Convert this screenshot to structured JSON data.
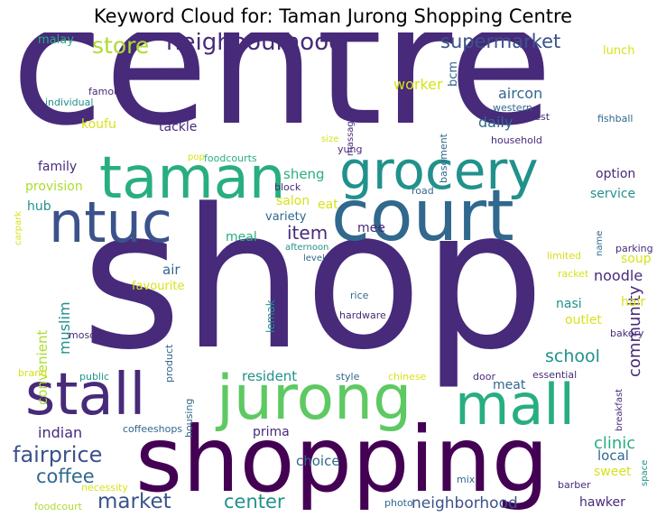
{
  "title": "Keyword Cloud for: Taman Jurong Shopping Centre",
  "palette": {
    "dark_purple": "#472a7a",
    "deep_purple": "#440154",
    "indigo": "#3b528b",
    "slate": "#31688e",
    "teal": "#21918c",
    "sea_green": "#28ae80",
    "green": "#5ec962",
    "light_green": "#addc30",
    "yellow": "#d8e219",
    "bright_yellow": "#fde725"
  },
  "words": [
    {
      "text": "centre",
      "weight": 1.0
    },
    {
      "text": "shop",
      "weight": 0.98
    },
    {
      "text": "shopping",
      "weight": 0.62
    },
    {
      "text": "court",
      "weight": 0.52
    },
    {
      "text": "jurong",
      "weight": 0.48
    },
    {
      "text": "taman",
      "weight": 0.46
    },
    {
      "text": "grocery",
      "weight": 0.43
    },
    {
      "text": "stall",
      "weight": 0.43
    },
    {
      "text": "mall",
      "weight": 0.42
    },
    {
      "text": "ntuc",
      "weight": 0.4
    },
    {
      "text": "neighbourhood",
      "weight": 0.2
    },
    {
      "text": "supermarket",
      "weight": 0.15
    },
    {
      "text": "store",
      "weight": 0.2
    },
    {
      "text": "fairprice",
      "weight": 0.17
    },
    {
      "text": "coffee",
      "weight": 0.15
    },
    {
      "text": "market",
      "weight": 0.15
    },
    {
      "text": "center",
      "weight": 0.15
    },
    {
      "text": "neighborhood",
      "weight": 0.12
    },
    {
      "text": "item",
      "weight": 0.14
    },
    {
      "text": "school",
      "weight": 0.14
    },
    {
      "text": "community",
      "weight": 0.14
    },
    {
      "text": "clinic",
      "weight": 0.12
    },
    {
      "text": "indian",
      "weight": 0.12
    },
    {
      "text": "muslim",
      "weight": 0.12
    },
    {
      "text": "noodle",
      "weight": 0.11
    },
    {
      "text": "aircon",
      "weight": 0.11
    },
    {
      "text": "daily",
      "weight": 0.11
    },
    {
      "text": "worker",
      "weight": 0.11
    },
    {
      "text": "sheng",
      "weight": 0.1
    },
    {
      "text": "choice",
      "weight": 0.1
    },
    {
      "text": "resident",
      "weight": 0.1
    },
    {
      "text": "air",
      "weight": 0.1
    },
    {
      "text": "local",
      "weight": 0.1
    },
    {
      "text": "convenient",
      "weight": 0.1
    },
    {
      "text": "hawker",
      "weight": 0.09
    },
    {
      "text": "tackle",
      "weight": 0.1
    },
    {
      "text": "koufu",
      "weight": 0.1
    },
    {
      "text": "family",
      "weight": 0.1
    },
    {
      "text": "provision",
      "weight": 0.09
    },
    {
      "text": "hub",
      "weight": 0.09
    },
    {
      "text": "service",
      "weight": 0.09
    },
    {
      "text": "option",
      "weight": 0.09
    },
    {
      "text": "variety",
      "weight": 0.09
    },
    {
      "text": "meal",
      "weight": 0.09
    },
    {
      "text": "eat",
      "weight": 0.09
    },
    {
      "text": "salon",
      "weight": 0.09
    },
    {
      "text": "mee",
      "weight": 0.09
    },
    {
      "text": "nasi",
      "weight": 0.09
    },
    {
      "text": "outlet",
      "weight": 0.09
    },
    {
      "text": "hair",
      "weight": 0.09
    },
    {
      "text": "soup",
      "weight": 0.09
    },
    {
      "text": "favourite",
      "weight": 0.09
    },
    {
      "text": "sweet",
      "weight": 0.09
    },
    {
      "text": "meat",
      "weight": 0.08
    },
    {
      "text": "prima",
      "weight": 0.09
    },
    {
      "text": "lunch",
      "weight": 0.08
    },
    {
      "text": "malay",
      "weight": 0.08
    },
    {
      "text": "bcm",
      "weight": 0.08
    },
    {
      "text": "lemak",
      "weight": 0.07
    },
    {
      "text": "famous",
      "weight": 0.07
    },
    {
      "text": "individual",
      "weight": 0.07
    },
    {
      "text": "massage",
      "weight": 0.06
    },
    {
      "text": "western",
      "weight": 0.07
    },
    {
      "text": "rest",
      "weight": 0.07
    },
    {
      "text": "basement",
      "weight": 0.07
    },
    {
      "text": "fishball",
      "weight": 0.07
    },
    {
      "text": "household",
      "weight": 0.07
    },
    {
      "text": "size",
      "weight": 0.06
    },
    {
      "text": "yung",
      "weight": 0.07
    },
    {
      "text": "pop",
      "weight": 0.06
    },
    {
      "text": "foodcourts",
      "weight": 0.07
    },
    {
      "text": "block",
      "weight": 0.07
    },
    {
      "text": "carpark",
      "weight": 0.06
    },
    {
      "text": "road",
      "weight": 0.07
    },
    {
      "text": "name",
      "weight": 0.06
    },
    {
      "text": "parking",
      "weight": 0.07
    },
    {
      "text": "afternoon",
      "weight": 0.06
    },
    {
      "text": "level",
      "weight": 0.06
    },
    {
      "text": "limited",
      "weight": 0.07
    },
    {
      "text": "racket",
      "weight": 0.07
    },
    {
      "text": "rice",
      "weight": 0.07
    },
    {
      "text": "hardware",
      "weight": 0.07
    },
    {
      "text": "product",
      "weight": 0.07
    },
    {
      "text": "mosque",
      "weight": 0.07
    },
    {
      "text": "bakery",
      "weight": 0.07
    },
    {
      "text": "breakfast",
      "weight": 0.07
    },
    {
      "text": "brand",
      "weight": 0.07
    },
    {
      "text": "public",
      "weight": 0.07
    },
    {
      "text": "housing",
      "weight": 0.07
    },
    {
      "text": "style",
      "weight": 0.07
    },
    {
      "text": "chinese",
      "weight": 0.07
    },
    {
      "text": "door",
      "weight": 0.07
    },
    {
      "text": "essential",
      "weight": 0.07
    },
    {
      "text": "coffeeshops",
      "weight": 0.07
    },
    {
      "text": "space",
      "weight": 0.06
    },
    {
      "text": "mix",
      "weight": 0.06
    },
    {
      "text": "barber",
      "weight": 0.07
    },
    {
      "text": "necessity",
      "weight": 0.07
    },
    {
      "text": "foodcourt",
      "weight": 0.07
    },
    {
      "text": "photo",
      "weight": 0.07
    }
  ]
}
